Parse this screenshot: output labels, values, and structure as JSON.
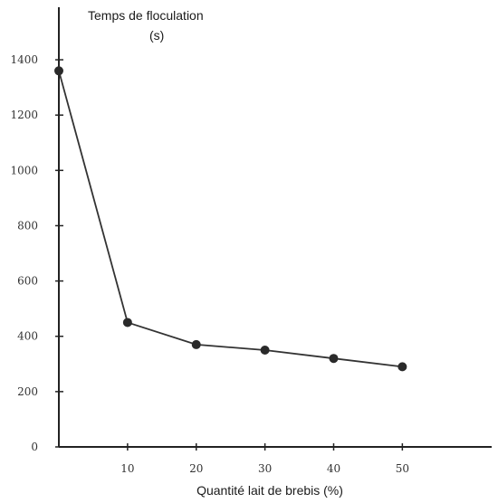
{
  "chart_data": {
    "type": "line",
    "title": "",
    "ylabel_line1": "Temps de floculation",
    "ylabel_line2": "(s)",
    "xlabel": "Quantité lait de brebis (%)",
    "x": [
      0,
      10,
      20,
      30,
      40,
      50
    ],
    "series": [
      {
        "values": [
          1360,
          450,
          370,
          350,
          320,
          290
        ]
      }
    ],
    "xticks": [
      10,
      20,
      30,
      40,
      50
    ],
    "xtick_labels": [
      "10",
      "20",
      "30",
      "40",
      "50"
    ],
    "yticks": [
      0,
      200,
      400,
      600,
      800,
      1000,
      1200,
      1400
    ],
    "ytick_labels": [
      "0",
      "200",
      "400",
      "600",
      "800",
      "1000",
      "1200",
      "1400"
    ],
    "xlim": [
      0,
      63
    ],
    "ylim": [
      0,
      1590
    ],
    "grid": false,
    "legend": false,
    "marker": "filled-circle",
    "line_color": "#333333",
    "marker_color": "#2a2a2a",
    "axis_color": "#222222"
  }
}
